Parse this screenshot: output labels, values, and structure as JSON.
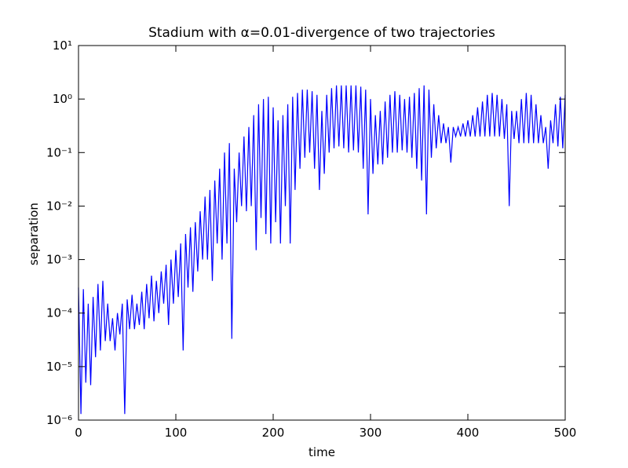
{
  "chart_data": {
    "type": "line",
    "title": "Stadium with α=0.01-divergence of two trajectories",
    "xlabel": "time",
    "ylabel": "separation",
    "yscale": "log",
    "color": "#0000ff",
    "xlim": [
      0,
      500
    ],
    "xticks": [
      0,
      100,
      200,
      300,
      400,
      500
    ],
    "ylim": [
      1e-06,
      10
    ],
    "yticks": [
      {
        "value": 1e-06,
        "label": "10⁻⁶"
      },
      {
        "value": 1e-05,
        "label": "10⁻⁵"
      },
      {
        "value": 0.0001,
        "label": "10⁻⁴"
      },
      {
        "value": 0.001,
        "label": "10⁻³"
      },
      {
        "value": 0.01,
        "label": "10⁻²"
      },
      {
        "value": 0.1,
        "label": "10⁻¹"
      },
      {
        "value": 1,
        "label": "10⁰"
      },
      {
        "value": 10,
        "label": "10¹"
      }
    ],
    "x": [
      0,
      2.5,
      5,
      7.5,
      10,
      12.5,
      15,
      17.5,
      20,
      22.5,
      25,
      27.5,
      30,
      32.5,
      35,
      37.5,
      40,
      42.5,
      45,
      47.5,
      50,
      52.5,
      55,
      57.5,
      60,
      62.5,
      65,
      67.5,
      70,
      72.5,
      75,
      77.5,
      80,
      82.5,
      85,
      87.5,
      90,
      92.5,
      95,
      97.5,
      100,
      102.5,
      105,
      107.5,
      110,
      112.5,
      115,
      117.5,
      120,
      122.5,
      125,
      127.5,
      130,
      132.5,
      135,
      137.5,
      140,
      142.5,
      145,
      147.5,
      150,
      152.5,
      155,
      157.5,
      160,
      162.5,
      165,
      167.5,
      170,
      172.5,
      175,
      177.5,
      180,
      182.5,
      185,
      187.5,
      190,
      192.5,
      195,
      197.5,
      200,
      202.5,
      205,
      207.5,
      210,
      212.5,
      215,
      217.5,
      220,
      222.5,
      225,
      227.5,
      230,
      232.5,
      235,
      237.5,
      240,
      242.5,
      245,
      247.5,
      250,
      252.5,
      255,
      257.5,
      260,
      262.5,
      265,
      267.5,
      270,
      272.5,
      275,
      277.5,
      280,
      282.5,
      285,
      287.5,
      290,
      292.5,
      295,
      297.5,
      300,
      302.5,
      305,
      307.5,
      310,
      312.5,
      315,
      317.5,
      320,
      322.5,
      325,
      327.5,
      330,
      332.5,
      335,
      337.5,
      340,
      342.5,
      345,
      347.5,
      350,
      352.5,
      355,
      357.5,
      360,
      362.5,
      365,
      367.5,
      370,
      372.5,
      375,
      377.5,
      380,
      382.5,
      385,
      387.5,
      390,
      392.5,
      395,
      397.5,
      400,
      402.5,
      405,
      407.5,
      410,
      412.5,
      415,
      417.5,
      420,
      422.5,
      425,
      427.5,
      430,
      432.5,
      435,
      437.5,
      440,
      442.5,
      445,
      447.5,
      450,
      452.5,
      455,
      457.5,
      460,
      462.5,
      465,
      467.5,
      470,
      472.5,
      475,
      477.5,
      480,
      482.5,
      485,
      487.5,
      490,
      492.5,
      495,
      497.5,
      500
    ],
    "values": [
      0.0003,
      1.3e-06,
      0.00028,
      5e-06,
      0.00015,
      4.5e-06,
      0.0002,
      1.5e-05,
      0.00035,
      2e-05,
      0.0004,
      3e-05,
      0.00015,
      3e-05,
      8e-05,
      2e-05,
      0.0001,
      4e-05,
      0.00015,
      1.3e-06,
      0.00018,
      5e-05,
      0.00022,
      5e-05,
      0.00015,
      6e-05,
      0.00025,
      5e-05,
      0.00035,
      8e-05,
      0.0005,
      7e-05,
      0.0004,
      0.0001,
      0.0006,
      0.00015,
      0.0008,
      6e-05,
      0.001,
      0.00015,
      0.0015,
      0.0002,
      0.002,
      2e-05,
      0.003,
      0.0003,
      0.004,
      0.00025,
      0.005,
      0.0006,
      0.008,
      0.001,
      0.015,
      0.001,
      0.02,
      0.0004,
      0.03,
      0.002,
      0.05,
      0.001,
      0.1,
      0.002,
      0.15,
      3.3e-05,
      0.05,
      0.005,
      0.1,
      0.01,
      0.2,
      0.008,
      0.3,
      0.01,
      0.5,
      0.0015,
      0.8,
      0.006,
      1.0,
      0.003,
      1.1,
      0.002,
      0.7,
      0.005,
      0.4,
      0.002,
      0.5,
      0.01,
      0.8,
      0.002,
      1.1,
      0.02,
      1.3,
      0.05,
      1.5,
      0.08,
      1.5,
      0.1,
      1.4,
      0.05,
      1.2,
      0.02,
      0.6,
      0.04,
      1.2,
      0.1,
      1.6,
      0.12,
      1.8,
      0.13,
      1.8,
      0.12,
      1.8,
      0.1,
      1.8,
      0.11,
      1.8,
      0.1,
      1.7,
      0.05,
      1.5,
      0.007,
      1.0,
      0.04,
      0.5,
      0.06,
      0.6,
      0.06,
      0.9,
      0.08,
      1.2,
      0.1,
      1.4,
      0.1,
      1.2,
      0.11,
      1.0,
      0.1,
      1.1,
      0.08,
      1.3,
      0.05,
      1.6,
      0.03,
      1.8,
      0.007,
      1.5,
      0.08,
      0.8,
      0.12,
      0.5,
      0.15,
      0.35,
      0.15,
      0.3,
      0.065,
      0.3,
      0.2,
      0.3,
      0.2,
      0.35,
      0.2,
      0.4,
      0.2,
      0.5,
      0.2,
      0.7,
      0.2,
      0.9,
      0.2,
      1.2,
      0.2,
      1.3,
      0.2,
      1.2,
      0.2,
      1.0,
      0.18,
      0.8,
      0.01,
      0.6,
      0.18,
      0.6,
      0.15,
      1.0,
      0.15,
      1.3,
      0.15,
      1.2,
      0.15,
      0.8,
      0.15,
      0.5,
      0.15,
      0.3,
      0.05,
      0.4,
      0.15,
      0.8,
      0.13,
      1.1,
      0.12,
      1.2
    ]
  }
}
